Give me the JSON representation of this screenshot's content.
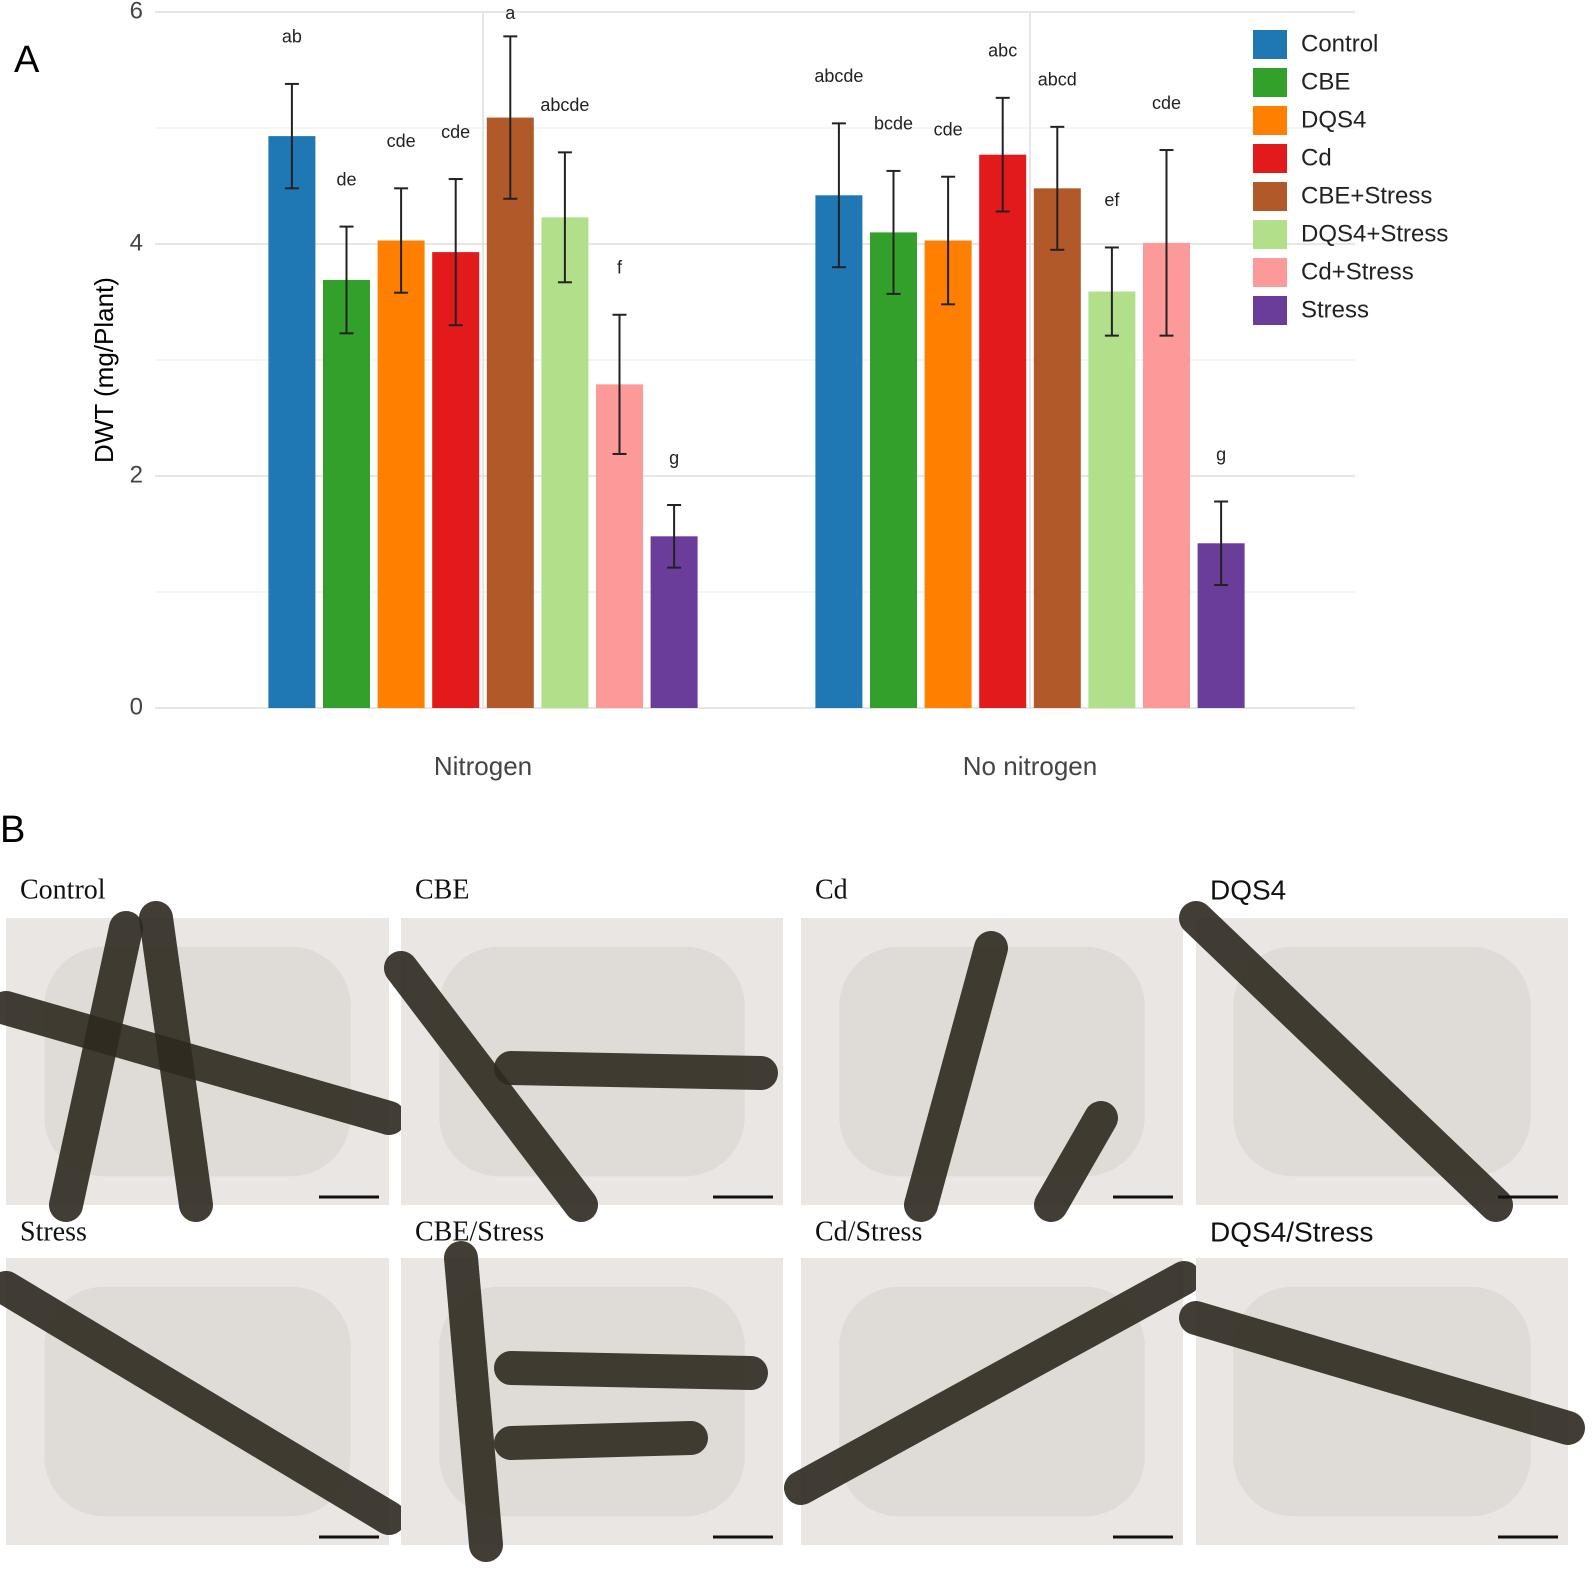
{
  "chart_data": {
    "type": "bar",
    "panel_label": "A",
    "ylabel": "DWT (mg/Plant)",
    "categories": [
      "Nitrogen",
      "No nitrogen"
    ],
    "ylim": [
      0,
      6
    ],
    "yticks": [
      0,
      2,
      4,
      6
    ],
    "minor_gridlines": [
      1,
      3,
      5
    ],
    "grid": true,
    "legend": "right",
    "series": [
      {
        "name": "Control",
        "color": "#1f78b4",
        "values": [
          4.93,
          4.42
        ],
        "errors": [
          0.45,
          0.62
        ],
        "letters": [
          "ab",
          "abcde"
        ]
      },
      {
        "name": "CBE",
        "color": "#33a02c",
        "values": [
          3.69,
          4.1
        ],
        "errors": [
          0.46,
          0.53
        ],
        "letters": [
          "de",
          "bcde"
        ]
      },
      {
        "name": "DQS4",
        "color": "#ff7f00",
        "values": [
          4.03,
          4.03
        ],
        "errors": [
          0.45,
          0.55
        ],
        "letters": [
          "cde",
          "cde"
        ]
      },
      {
        "name": "Cd",
        "color": "#e31a1c",
        "values": [
          3.93,
          4.77
        ],
        "errors": [
          0.63,
          0.49
        ],
        "letters": [
          "cde",
          "abc"
        ]
      },
      {
        "name": "CBE+Stress",
        "color": "#b15928",
        "values": [
          5.09,
          4.48
        ],
        "errors": [
          0.7,
          0.53
        ],
        "letters": [
          "a",
          "abcd"
        ]
      },
      {
        "name": "DQS4+Stress",
        "color": "#b2df8a",
        "values": [
          4.23,
          3.59
        ],
        "errors": [
          0.56,
          0.38
        ],
        "letters": [
          "abcde",
          "ef"
        ]
      },
      {
        "name": "Cd+Stress",
        "color": "#fb9a99",
        "values": [
          2.79,
          4.01
        ],
        "errors": [
          0.6,
          0.8
        ],
        "letters": [
          "f",
          "cde"
        ]
      },
      {
        "name": "Stress",
        "color": "#6a3d9a",
        "values": [
          1.48,
          1.42
        ],
        "errors": [
          0.27,
          0.36
        ],
        "letters": [
          "g",
          "g"
        ]
      }
    ]
  },
  "panel_b": {
    "label": "B",
    "photos": [
      {
        "title": "Control"
      },
      {
        "title": "CBE"
      },
      {
        "title": "Cd"
      },
      {
        "title": "DQS4"
      },
      {
        "title": "Stress"
      },
      {
        "title": "CBE/Stress"
      },
      {
        "title": "Cd/Stress"
      },
      {
        "title": "DQS4/Stress"
      }
    ]
  }
}
